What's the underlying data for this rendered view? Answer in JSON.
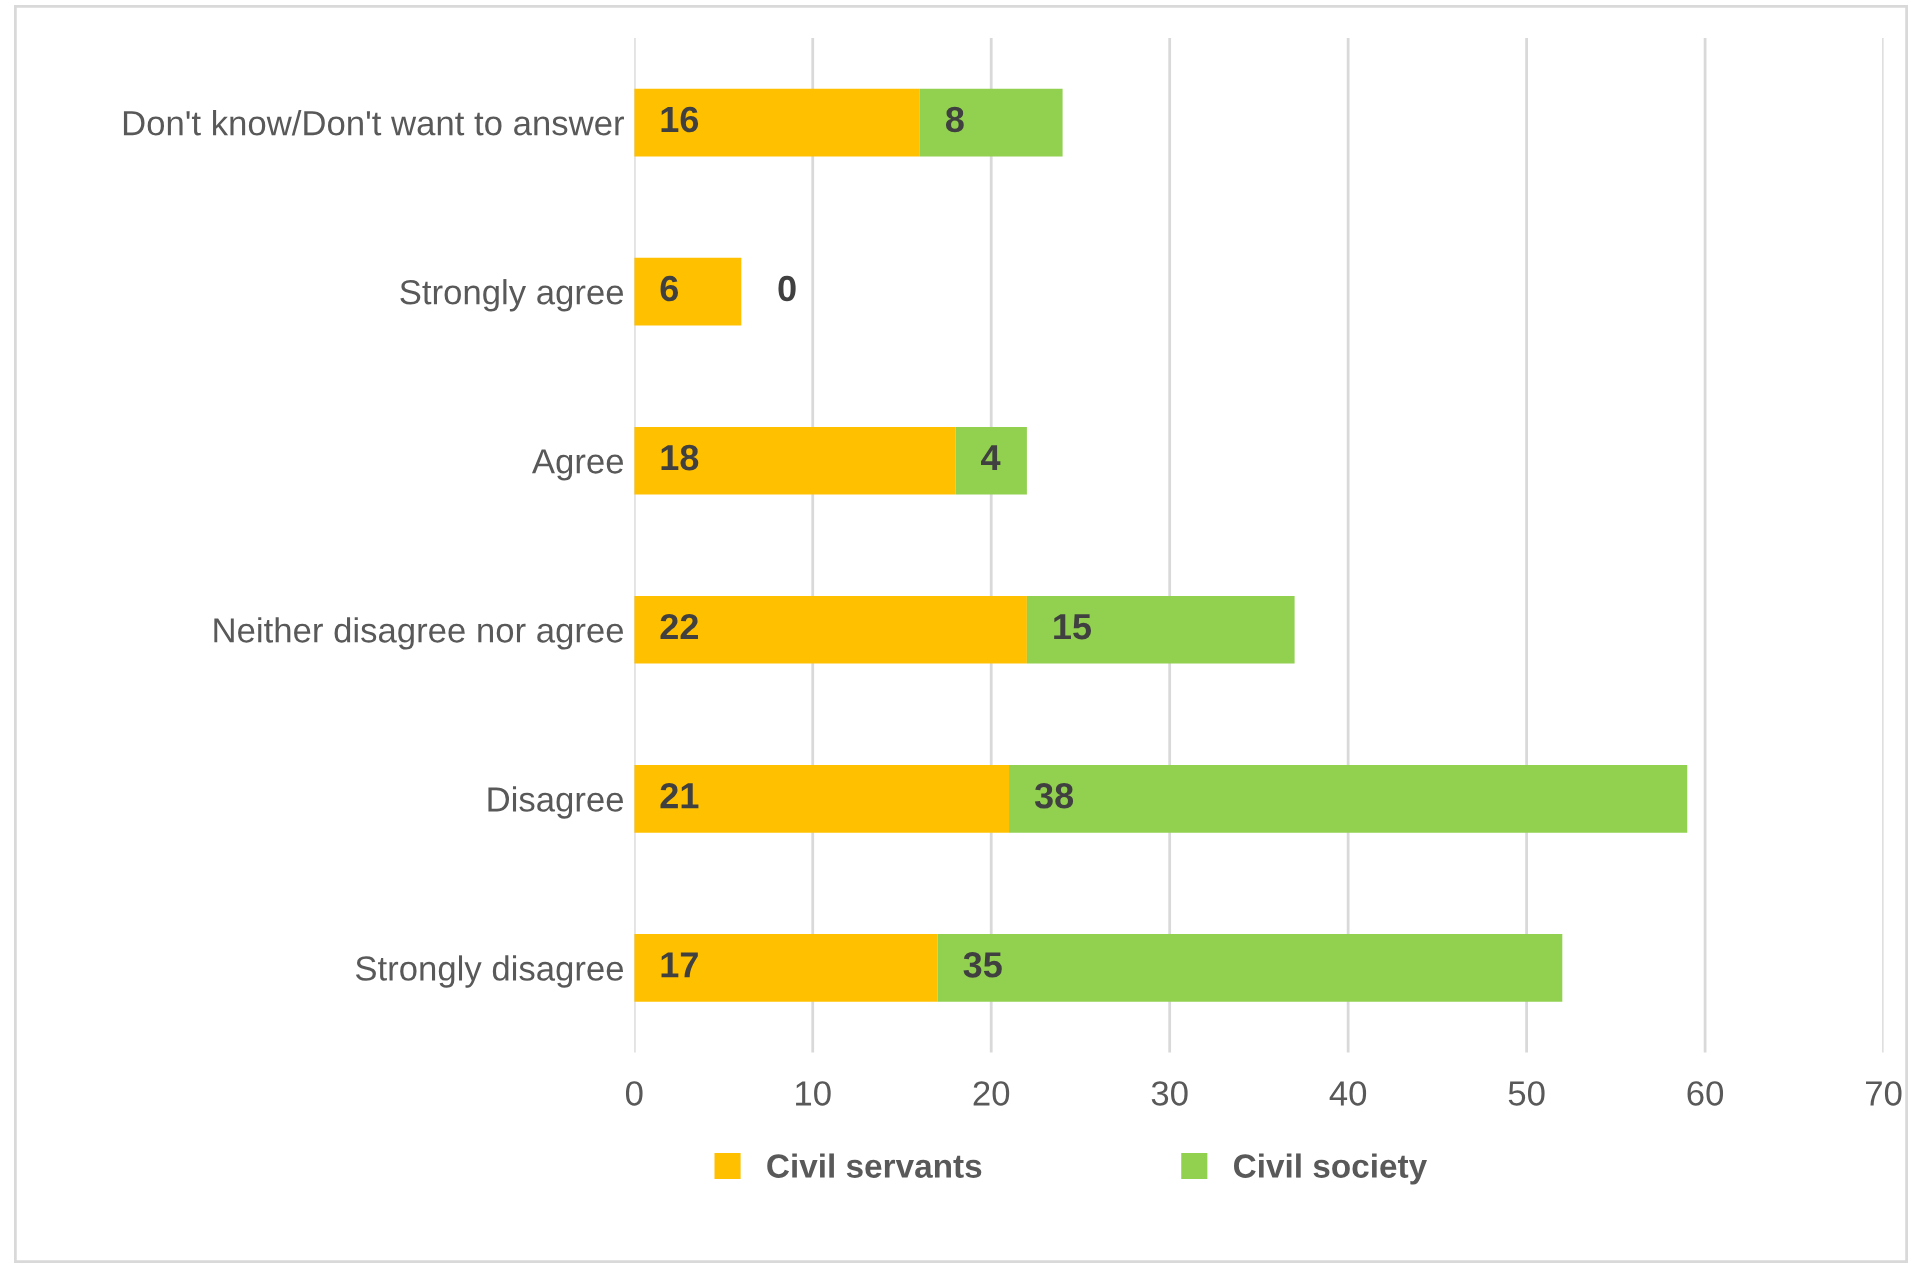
{
  "chart_data": {
    "type": "bar",
    "orientation": "horizontal",
    "stacked": true,
    "categories": [
      "Don't know/Don't want to answer",
      "Strongly agree",
      "Agree",
      "Neither disagree nor agree",
      "Disagree",
      "Strongly disagree"
    ],
    "series": [
      {
        "name": "Civil servants",
        "color": "#ffc000",
        "values": [
          16,
          6,
          18,
          22,
          21,
          17
        ]
      },
      {
        "name": "Civil society",
        "color": "#92d050",
        "values": [
          8,
          0,
          4,
          15,
          38,
          35
        ]
      }
    ],
    "xlim": [
      0,
      70
    ],
    "xticks": [
      0,
      10,
      20,
      30,
      40,
      50,
      60,
      70
    ],
    "grid": "x",
    "legend": "bottom",
    "data_labels": true
  }
}
